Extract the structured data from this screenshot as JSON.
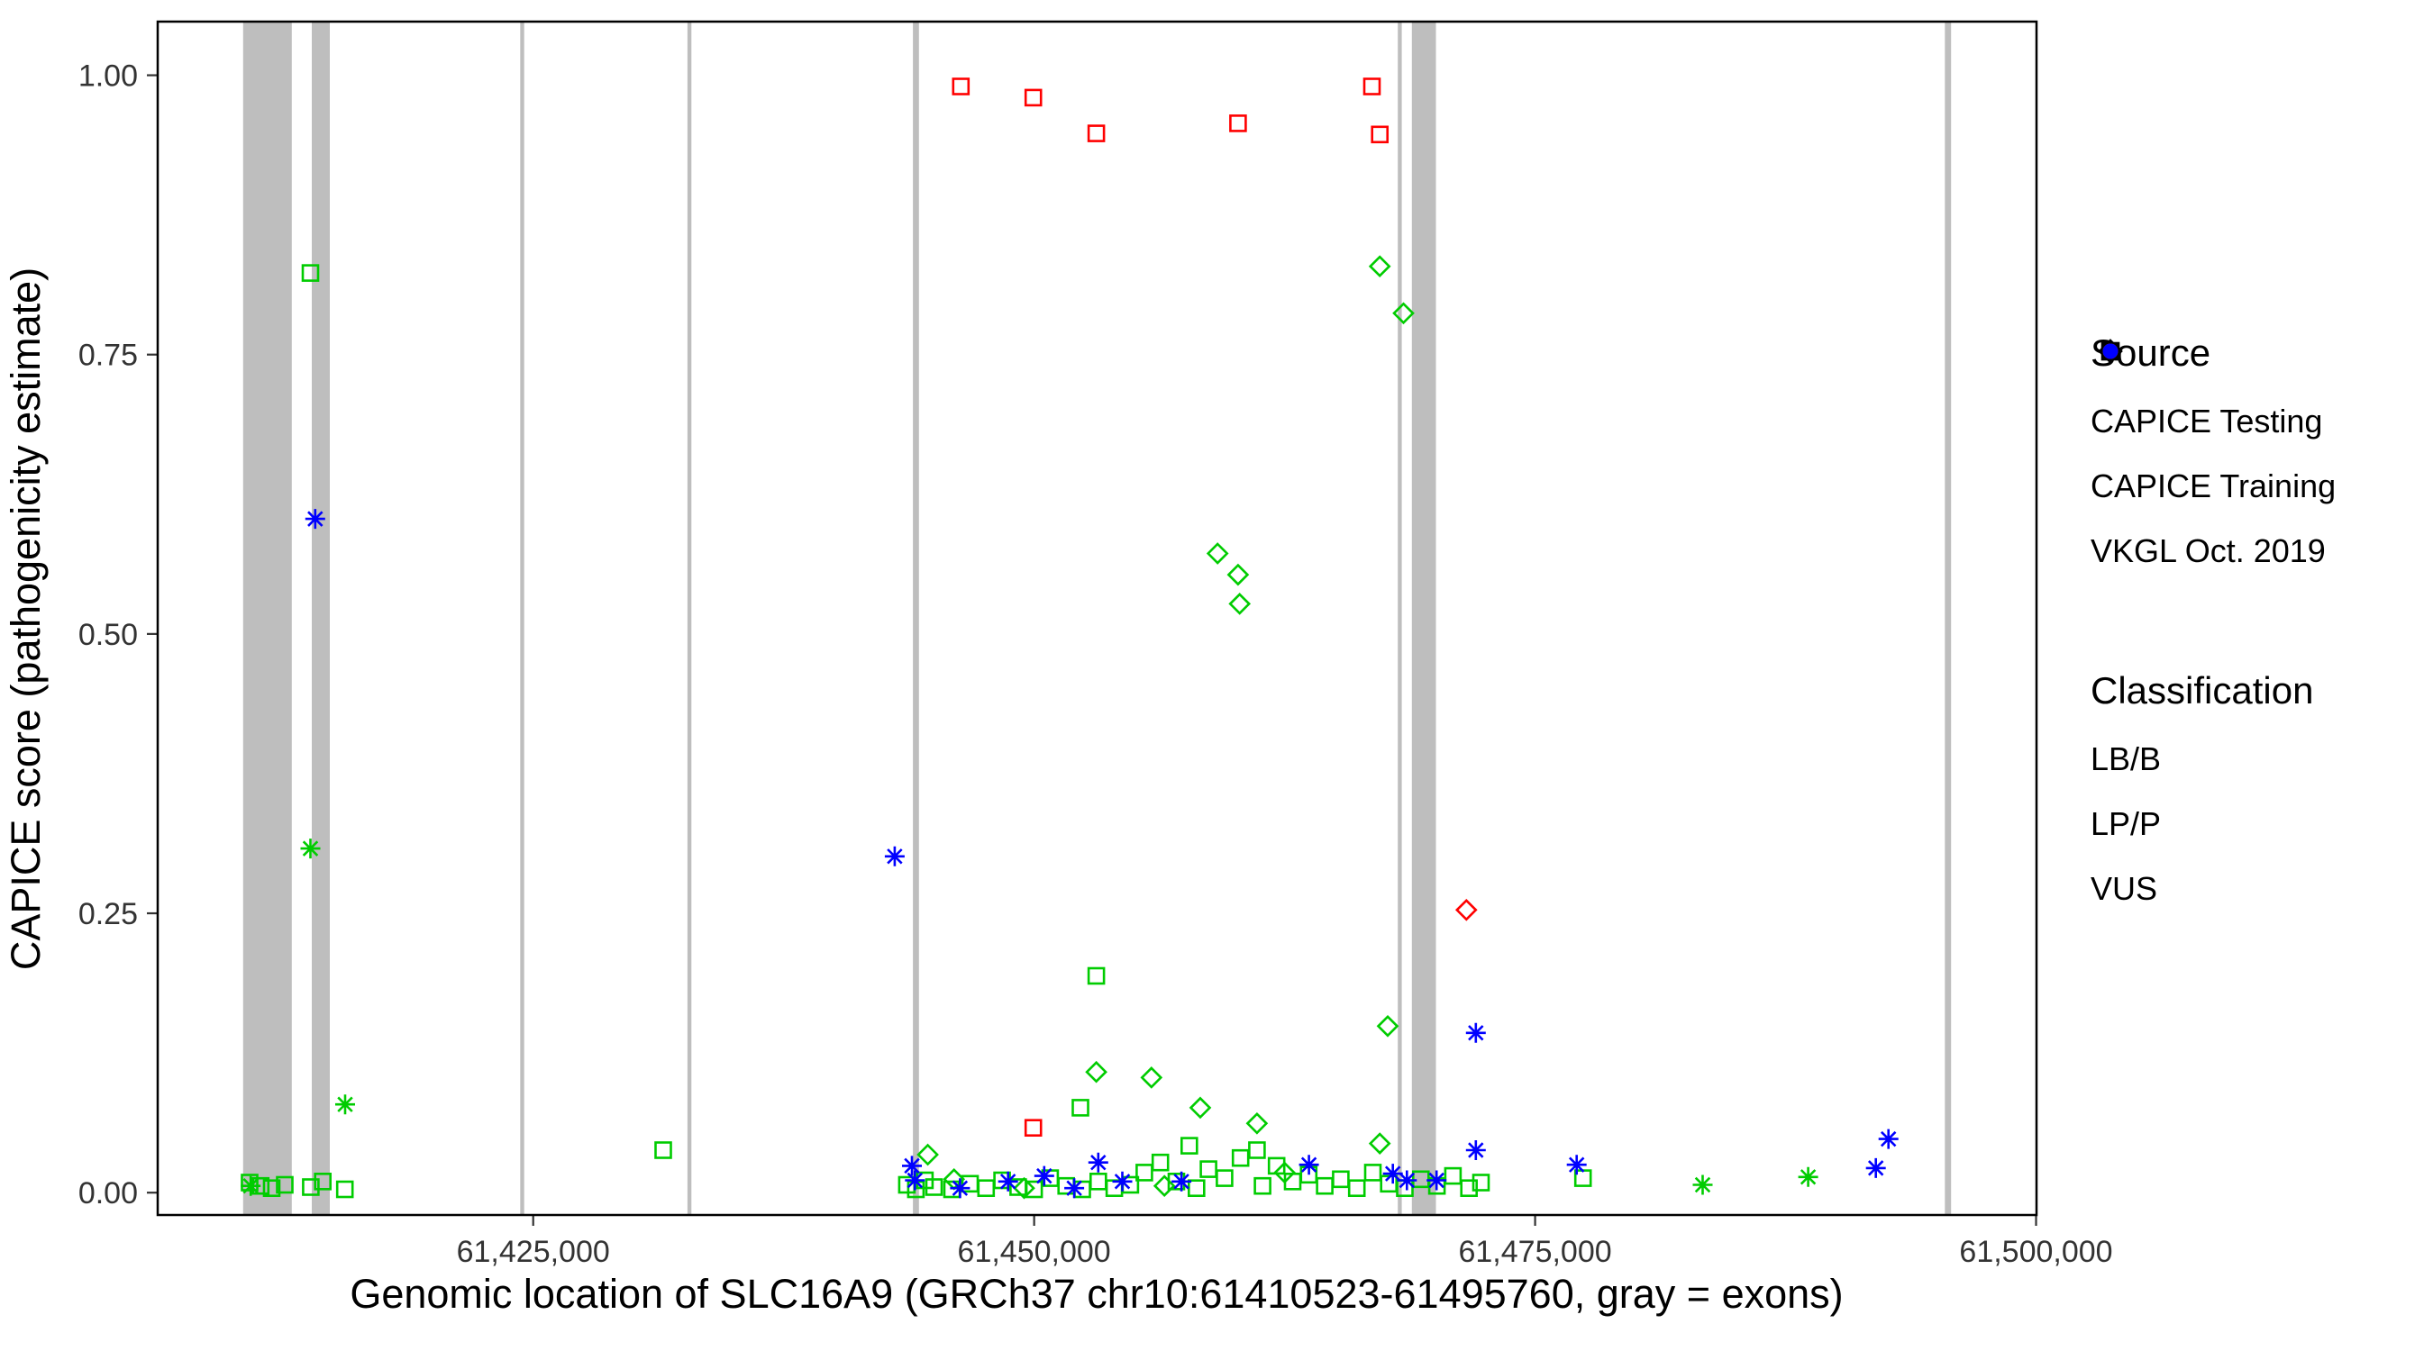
{
  "figure": {
    "x_axis_title": "Genomic location of SLC16A9 (GRCh37 chr10:61410523-61495760, gray = exons)",
    "y_axis_title": "CAPICE score (pathogenicity estimate)"
  },
  "axes": {
    "x": {
      "ticks": [
        {
          "value": 61425000,
          "label": "61,425,000"
        },
        {
          "value": 61450000,
          "label": "61,450,000"
        },
        {
          "value": 61475000,
          "label": "61,475,000"
        },
        {
          "value": 61500000,
          "label": "61,500,000"
        }
      ]
    },
    "y": {
      "ticks": [
        {
          "value": 0.0,
          "label": "0.00"
        },
        {
          "value": 0.25,
          "label": "0.25"
        },
        {
          "value": 0.5,
          "label": "0.50"
        },
        {
          "value": 0.75,
          "label": "0.75"
        },
        {
          "value": 1.0,
          "label": "1.00"
        }
      ]
    }
  },
  "legend": {
    "source": {
      "title": "Source",
      "items": [
        {
          "label": "CAPICE Testing",
          "shape": "diamond-open"
        },
        {
          "label": "CAPICE Training",
          "shape": "square-open"
        },
        {
          "label": "VKGL Oct. 2019",
          "shape": "asterisk"
        }
      ]
    },
    "classification": {
      "title": "Classification",
      "items": [
        {
          "label": "LB/B",
          "color": "#00CC00"
        },
        {
          "label": "LP/P",
          "color": "#FF0000"
        },
        {
          "label": "VUS",
          "color": "#0000FF"
        }
      ]
    }
  },
  "chart_data": {
    "type": "scatter",
    "title": "",
    "xlabel": "Genomic location of SLC16A9 (GRCh37 chr10:61410523-61495760, gray = exons)",
    "ylabel": "CAPICE score (pathogenicity estimate)",
    "x_domain": [
      61406261,
      61500022
    ],
    "y_domain": [
      -0.02,
      1.048
    ],
    "grid": false,
    "legend_position": "right",
    "exon_color": "#BEBEBE",
    "colors": {
      "LB/B": "#00CC00",
      "LP/P": "#FF0000",
      "VUS": "#0000FF"
    },
    "exons": [
      [
        61410523,
        61412950
      ],
      [
        61413950,
        61414850
      ],
      [
        61424350,
        61424550
      ],
      [
        61432700,
        61432900
      ],
      [
        61443950,
        61444250
      ],
      [
        61468150,
        61468350
      ],
      [
        61468850,
        61470050
      ],
      [
        61495450,
        61495760
      ]
    ],
    "series": [
      {
        "name": "CAPICE Testing / LB-B",
        "source": "CAPICE Testing",
        "classification": "LB/B",
        "shape": "diamond-open",
        "points": [
          [
            61467249,
            0.829
          ],
          [
            61468429,
            0.787
          ],
          [
            61459155,
            0.572
          ],
          [
            61460176,
            0.553
          ],
          [
            61460255,
            0.527
          ],
          [
            61467643,
            0.149
          ],
          [
            61453103,
            0.108
          ],
          [
            61455854,
            0.103
          ],
          [
            61458291,
            0.076
          ],
          [
            61461120,
            0.062
          ],
          [
            61467249,
            0.044
          ],
          [
            61444692,
            0.034
          ],
          [
            61446000,
            0.012
          ],
          [
            61456500,
            0.006
          ],
          [
            61462500,
            0.018
          ],
          [
            61449500,
            0.004
          ]
        ]
      },
      {
        "name": "CAPICE Testing / LP-P",
        "source": "CAPICE Testing",
        "classification": "LP/P",
        "shape": "diamond-open",
        "points": [
          [
            61471572,
            0.253
          ]
        ]
      },
      {
        "name": "CAPICE Training / LB-B",
        "source": "CAPICE Training",
        "classification": "LB/B",
        "shape": "square-open",
        "points": [
          [
            61413885,
            0.823
          ],
          [
            61453103,
            0.194
          ],
          [
            61452310,
            0.076
          ],
          [
            61431490,
            0.038
          ],
          [
            61410850,
            0.009
          ],
          [
            61411400,
            0.006
          ],
          [
            61411950,
            0.004
          ],
          [
            61412600,
            0.007
          ],
          [
            61413900,
            0.005
          ],
          [
            61414500,
            0.01
          ],
          [
            61415600,
            0.003
          ],
          [
            61443650,
            0.007
          ],
          [
            61444100,
            0.003
          ],
          [
            61444550,
            0.011
          ],
          [
            61445000,
            0.005
          ],
          [
            61445900,
            0.003
          ],
          [
            61446800,
            0.008
          ],
          [
            61447600,
            0.004
          ],
          [
            61448400,
            0.011
          ],
          [
            61449200,
            0.005
          ],
          [
            61450000,
            0.003
          ],
          [
            61450800,
            0.013
          ],
          [
            61451600,
            0.006
          ],
          [
            61452400,
            0.003
          ],
          [
            61453200,
            0.01
          ],
          [
            61454000,
            0.004
          ],
          [
            61454800,
            0.007
          ],
          [
            61455500,
            0.018
          ],
          [
            61456300,
            0.027
          ],
          [
            61457100,
            0.01
          ],
          [
            61457740,
            0.042
          ],
          [
            61458100,
            0.004
          ],
          [
            61458700,
            0.021
          ],
          [
            61459500,
            0.013
          ],
          [
            61460300,
            0.031
          ],
          [
            61461120,
            0.038
          ],
          [
            61461400,
            0.006
          ],
          [
            61462100,
            0.024
          ],
          [
            61462900,
            0.01
          ],
          [
            61463700,
            0.016
          ],
          [
            61464500,
            0.006
          ],
          [
            61465300,
            0.012
          ],
          [
            61466100,
            0.004
          ],
          [
            61466900,
            0.018
          ],
          [
            61467700,
            0.008
          ],
          [
            61468500,
            0.004
          ],
          [
            61469300,
            0.012
          ],
          [
            61470100,
            0.006
          ],
          [
            61470900,
            0.015
          ],
          [
            61471700,
            0.004
          ],
          [
            61472300,
            0.009
          ],
          [
            61477387,
            0.013
          ]
        ]
      },
      {
        "name": "CAPICE Training / LP-P",
        "source": "CAPICE Training",
        "classification": "LP/P",
        "shape": "square-open",
        "points": [
          [
            61446342,
            0.99
          ],
          [
            61449959,
            0.98
          ],
          [
            61453103,
            0.948
          ],
          [
            61460176,
            0.957
          ],
          [
            61466856,
            0.99
          ],
          [
            61467249,
            0.947
          ],
          [
            61449959,
            0.058
          ]
        ]
      },
      {
        "name": "VKGL Oct. 2019 / LB-B",
        "source": "VKGL Oct. 2019",
        "classification": "LB/B",
        "shape": "asterisk",
        "points": [
          [
            61413885,
            0.308
          ],
          [
            61415614,
            0.079
          ],
          [
            61410900,
            0.006
          ],
          [
            61483360,
            0.007
          ],
          [
            61488626,
            0.014
          ]
        ]
      },
      {
        "name": "VKGL Oct. 2019 / VUS",
        "source": "VKGL Oct. 2019",
        "classification": "VUS",
        "shape": "asterisk",
        "points": [
          [
            61414120,
            0.603
          ],
          [
            61443042,
            0.301
          ],
          [
            61472043,
            0.143
          ],
          [
            61472043,
            0.038
          ],
          [
            61463713,
            0.025
          ],
          [
            61477073,
            0.025
          ],
          [
            61492634,
            0.048
          ],
          [
            61492006,
            0.022
          ],
          [
            61443900,
            0.024
          ],
          [
            61444050,
            0.011
          ],
          [
            61448700,
            0.01
          ],
          [
            61450500,
            0.015
          ],
          [
            61453200,
            0.027
          ],
          [
            61454400,
            0.01
          ],
          [
            61457350,
            0.01
          ],
          [
            61467900,
            0.017
          ],
          [
            61468600,
            0.011
          ],
          [
            61470080,
            0.011
          ],
          [
            61446300,
            0.004
          ],
          [
            61452000,
            0.004
          ]
        ]
      }
    ]
  }
}
